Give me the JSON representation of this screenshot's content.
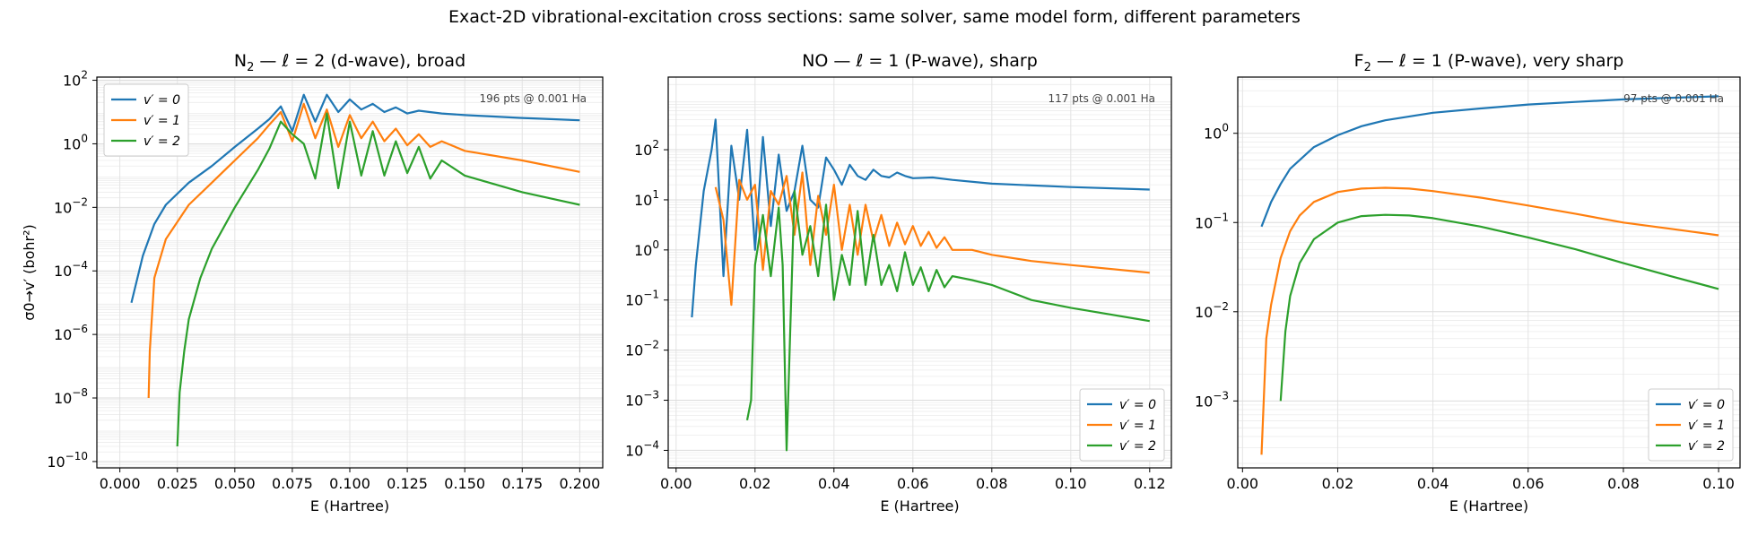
{
  "suptitle": "Exact-2D vibrational-excitation cross sections: same solver, same model form, different parameters",
  "colors": {
    "v0": "#1f77b4",
    "v1": "#ff7f0e",
    "v2": "#2ca02c"
  },
  "chart_data": [
    {
      "type": "line",
      "title_mol": "N",
      "title_sub": "2",
      "title_rest": "  —  ℓ = 2 (d-wave), broad",
      "xlabel": "E (Hartree)",
      "ylabel": "σ0→v′ (bohr²)",
      "yscale": "log",
      "xlim": [
        -0.01,
        0.21
      ],
      "ylim_log10": [
        -10.2,
        2.1
      ],
      "xticks": [
        "0.000",
        "0.025",
        "0.050",
        "0.075",
        "0.100",
        "0.125",
        "0.150",
        "0.175",
        "0.200"
      ],
      "yticks_exp": [
        "2",
        "0",
        "−2",
        "−4",
        "−6",
        "−8",
        "−10"
      ],
      "note": "196 pts @ 0.001 Ha",
      "legend": "upper left",
      "series": [
        {
          "name": "v′ = 0",
          "x": [
            0.005,
            0.01,
            0.015,
            0.02,
            0.03,
            0.04,
            0.05,
            0.06,
            0.065,
            0.07,
            0.075,
            0.08,
            0.085,
            0.09,
            0.095,
            0.1,
            0.105,
            0.11,
            0.115,
            0.12,
            0.125,
            0.13,
            0.14,
            0.15,
            0.175,
            0.2
          ],
          "y": [
            1e-05,
            0.0003,
            0.003,
            0.012,
            0.06,
            0.2,
            0.8,
            3,
            6,
            15,
            2.5,
            35,
            5,
            35,
            10,
            25,
            12,
            18,
            10,
            14,
            9,
            11,
            9,
            8,
            6.5,
            5.5
          ]
        },
        {
          "name": "v′ = 1",
          "x": [
            0.0125,
            0.013,
            0.015,
            0.02,
            0.03,
            0.04,
            0.05,
            0.06,
            0.065,
            0.07,
            0.075,
            0.08,
            0.085,
            0.09,
            0.095,
            0.1,
            0.105,
            0.11,
            0.115,
            0.12,
            0.125,
            0.13,
            0.135,
            0.14,
            0.15,
            0.175,
            0.2
          ],
          "y": [
            1e-08,
            3e-07,
            6e-05,
            0.001,
            0.012,
            0.06,
            0.3,
            1.5,
            4,
            10,
            1.2,
            18,
            1.5,
            12,
            0.8,
            8,
            1.5,
            5,
            1.2,
            3,
            0.9,
            2,
            0.8,
            1.2,
            0.6,
            0.3,
            0.13
          ]
        },
        {
          "name": "v′ = 2",
          "x": [
            0.025,
            0.026,
            0.028,
            0.03,
            0.035,
            0.04,
            0.05,
            0.06,
            0.065,
            0.07,
            0.075,
            0.08,
            0.085,
            0.09,
            0.095,
            0.1,
            0.105,
            0.11,
            0.115,
            0.12,
            0.125,
            0.13,
            0.135,
            0.14,
            0.15,
            0.175,
            0.2
          ],
          "y": [
            3e-10,
            1.5e-08,
            3e-07,
            3e-06,
            6e-05,
            0.0005,
            0.01,
            0.15,
            0.7,
            5,
            2,
            1,
            0.08,
            9,
            0.04,
            5,
            0.1,
            2.5,
            0.1,
            1.2,
            0.12,
            0.8,
            0.08,
            0.3,
            0.1,
            0.03,
            0.012
          ]
        }
      ]
    },
    {
      "type": "line",
      "title_mol": "NO",
      "title_sub": "",
      "title_rest": "  —  ℓ = 1 (P-wave), sharp",
      "xlabel": "E (Hartree)",
      "ylabel": "",
      "yscale": "log",
      "xlim": [
        -0.002,
        0.1255
      ],
      "ylim_log10": [
        -4.35,
        3.45
      ],
      "xticks": [
        "0.00",
        "0.02",
        "0.04",
        "0.06",
        "0.08",
        "0.10",
        "0.12"
      ],
      "yticks_exp": [
        "2",
        "1",
        "0",
        "−1",
        "−2",
        "−3",
        "−4"
      ],
      "note": "117 pts @ 0.001 Ha",
      "legend": "lower right",
      "series": [
        {
          "name": "v′ = 0",
          "x": [
            0.004,
            0.005,
            0.007,
            0.009,
            0.01,
            0.012,
            0.014,
            0.016,
            0.018,
            0.02,
            0.022,
            0.024,
            0.026,
            0.028,
            0.03,
            0.032,
            0.034,
            0.036,
            0.038,
            0.04,
            0.042,
            0.044,
            0.046,
            0.048,
            0.05,
            0.052,
            0.054,
            0.056,
            0.058,
            0.06,
            0.065,
            0.07,
            0.08,
            0.1,
            0.12
          ],
          "y": [
            0.045,
            0.5,
            15,
            100,
            400,
            0.3,
            120,
            10,
            250,
            1,
            180,
            3,
            80,
            6,
            15,
            120,
            10,
            7,
            70,
            40,
            20,
            50,
            30,
            25,
            40,
            30,
            28,
            35,
            30,
            27,
            28,
            25,
            21,
            18,
            16
          ]
        },
        {
          "name": "v′ = 1",
          "x": [
            0.01,
            0.012,
            0.014,
            0.016,
            0.018,
            0.02,
            0.022,
            0.024,
            0.026,
            0.028,
            0.03,
            0.032,
            0.034,
            0.036,
            0.038,
            0.04,
            0.042,
            0.044,
            0.046,
            0.048,
            0.05,
            0.052,
            0.054,
            0.056,
            0.058,
            0.06,
            0.062,
            0.064,
            0.066,
            0.068,
            0.07,
            0.075,
            0.08,
            0.09,
            0.1,
            0.12
          ],
          "y": [
            18,
            4,
            0.08,
            25,
            10,
            20,
            0.4,
            15,
            8,
            30,
            2,
            35,
            0.5,
            12,
            2,
            20,
            1,
            8,
            0.8,
            8,
            1.5,
            5,
            1.2,
            3.5,
            1.3,
            3,
            1.2,
            2.3,
            1.1,
            1.8,
            1.0,
            1.0,
            0.8,
            0.6,
            0.5,
            0.35
          ]
        },
        {
          "name": "v′ = 2",
          "x": [
            0.018,
            0.019,
            0.02,
            0.022,
            0.024,
            0.026,
            0.027,
            0.028,
            0.03,
            0.032,
            0.034,
            0.036,
            0.038,
            0.04,
            0.042,
            0.044,
            0.046,
            0.048,
            0.05,
            0.052,
            0.054,
            0.056,
            0.058,
            0.06,
            0.062,
            0.064,
            0.066,
            0.068,
            0.07,
            0.075,
            0.08,
            0.09,
            0.1,
            0.12
          ],
          "y": [
            0.0004,
            0.001,
            0.5,
            5,
            0.3,
            7,
            0.5,
            0.0001,
            15,
            0.8,
            3,
            0.3,
            8,
            0.1,
            0.8,
            0.2,
            6,
            0.2,
            2,
            0.2,
            0.5,
            0.15,
            0.9,
            0.2,
            0.45,
            0.15,
            0.4,
            0.18,
            0.3,
            0.25,
            0.2,
            0.1,
            0.07,
            0.038
          ]
        }
      ]
    },
    {
      "type": "line",
      "title_mol": "F",
      "title_sub": "2",
      "title_rest": "  —  ℓ = 1 (P-wave), very sharp",
      "xlabel": "E (Hartree)",
      "ylabel": "",
      "yscale": "log",
      "xlim": [
        -0.001,
        0.1045
      ],
      "ylim_log10": [
        -3.75,
        0.63
      ],
      "xticks": [
        "0.00",
        "0.02",
        "0.04",
        "0.06",
        "0.08",
        "0.10"
      ],
      "yticks_exp": [
        "0",
        "−1",
        "−2",
        "−3"
      ],
      "note": "97 pts @ 0.001 Ha",
      "legend": "lower right",
      "series": [
        {
          "name": "v′ = 0",
          "x": [
            0.004,
            0.006,
            0.008,
            0.01,
            0.015,
            0.02,
            0.025,
            0.03,
            0.04,
            0.05,
            0.06,
            0.07,
            0.08,
            0.09,
            0.1
          ],
          "y": [
            0.09,
            0.17,
            0.27,
            0.4,
            0.7,
            0.95,
            1.2,
            1.4,
            1.7,
            1.9,
            2.1,
            2.25,
            2.4,
            2.5,
            2.6
          ]
        },
        {
          "name": "v′ = 1",
          "x": [
            0.004,
            0.005,
            0.006,
            0.008,
            0.01,
            0.012,
            0.015,
            0.02,
            0.025,
            0.03,
            0.035,
            0.04,
            0.05,
            0.06,
            0.07,
            0.08,
            0.09,
            0.1
          ],
          "y": [
            0.00025,
            0.005,
            0.012,
            0.04,
            0.08,
            0.12,
            0.17,
            0.22,
            0.24,
            0.245,
            0.24,
            0.225,
            0.19,
            0.155,
            0.125,
            0.1,
            0.085,
            0.072
          ]
        },
        {
          "name": "v′ = 2",
          "x": [
            0.008,
            0.009,
            0.01,
            0.012,
            0.015,
            0.02,
            0.025,
            0.03,
            0.035,
            0.04,
            0.05,
            0.06,
            0.07,
            0.08,
            0.09,
            0.1
          ],
          "y": [
            0.001,
            0.006,
            0.015,
            0.035,
            0.065,
            0.1,
            0.118,
            0.122,
            0.12,
            0.112,
            0.09,
            0.068,
            0.05,
            0.035,
            0.025,
            0.018
          ]
        }
      ]
    }
  ]
}
